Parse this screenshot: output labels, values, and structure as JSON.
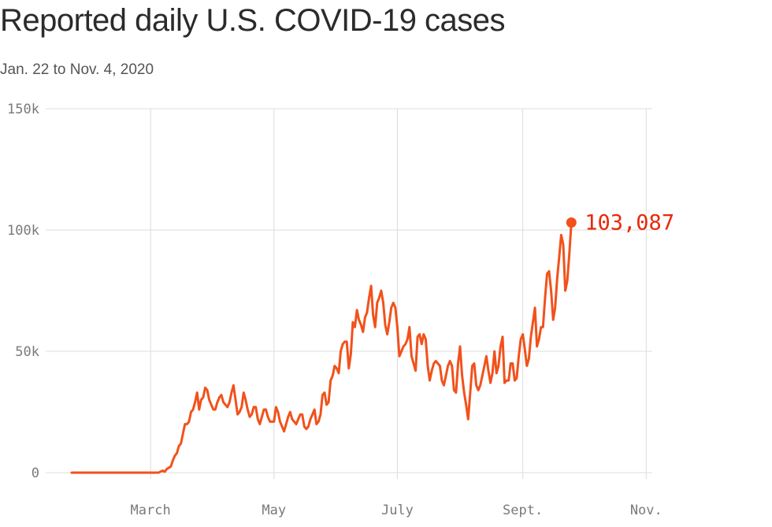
{
  "title": "Reported daily U.S. COVID-19 cases",
  "subtitle": "Jan. 22 to Nov. 4, 2020",
  "colors": {
    "line": "#f2511b",
    "label": "#e8290b",
    "grid": "#dcdcdc",
    "text": "#7a7a7a"
  },
  "chart_data": {
    "type": "line",
    "title": "Reported daily U.S. COVID-19 cases",
    "subtitle": "Jan. 22 to Nov. 4, 2020",
    "ylim": [
      0,
      150000
    ],
    "yticks": [
      {
        "value": 0,
        "label": "0"
      },
      {
        "value": 50000,
        "label": "50k"
      },
      {
        "value": 100000,
        "label": "100k"
      },
      {
        "value": 150000,
        "label": "150k"
      }
    ],
    "xlim": [
      "2020-01-22",
      "2020-11-04"
    ],
    "xticks": [
      {
        "date": "2020-03-01",
        "label": "March"
      },
      {
        "date": "2020-05-01",
        "label": "May"
      },
      {
        "date": "2020-07-01",
        "label": "July"
      },
      {
        "date": "2020-09-01",
        "label": "Sept."
      },
      {
        "date": "2020-11-01",
        "label": "Nov."
      }
    ],
    "grid": true,
    "end_label": "103,087",
    "series": [
      {
        "start_date": "2020-01-22",
        "values": [
          0,
          0,
          0,
          0,
          0,
          0,
          0,
          0,
          0,
          0,
          0,
          0,
          0,
          0,
          0,
          0,
          0,
          0,
          0,
          0,
          0,
          0,
          0,
          0,
          0,
          0,
          0,
          0,
          0,
          0,
          0,
          0,
          0,
          0,
          0,
          0,
          0,
          0,
          0,
          0,
          0,
          0,
          0,
          0,
          500,
          800,
          400,
          1500,
          2000,
          2500,
          5000,
          7000,
          8000,
          11000,
          12000,
          16000,
          20000,
          20000,
          21000,
          25000,
          26000,
          29000,
          33000,
          26000,
          30000,
          31000,
          35000,
          34000,
          30000,
          28000,
          26000,
          26000,
          29000,
          31000,
          32000,
          29000,
          28000,
          27000,
          29000,
          33000,
          36000,
          30000,
          24000,
          25000,
          27000,
          33000,
          30000,
          26000,
          23000,
          24000,
          27000,
          27000,
          22000,
          20000,
          23000,
          26000,
          26000,
          23000,
          21000,
          21000,
          21000,
          27000,
          25000,
          21000,
          19000,
          17000,
          20000,
          23000,
          25000,
          22000,
          21000,
          20000,
          22000,
          24000,
          24000,
          19000,
          18000,
          19000,
          22000,
          24000,
          26000,
          20000,
          21000,
          24000,
          32000,
          33000,
          28000,
          29000,
          38000,
          40000,
          44000,
          43000,
          41000,
          50000,
          53000,
          54000,
          54000,
          43000,
          49000,
          62000,
          60000,
          67000,
          63000,
          61000,
          58000,
          64000,
          66000,
          72000,
          77000,
          65000,
          60000,
          70000,
          72000,
          75000,
          70000,
          61000,
          57000,
          62000,
          68000,
          70000,
          68000,
          60000,
          48000,
          50000,
          52000,
          53000,
          55000,
          60000,
          48000,
          45000,
          42000,
          56000,
          57000,
          53000,
          57000,
          55000,
          44000,
          38000,
          42000,
          45000,
          46000,
          45000,
          44000,
          38000,
          36000,
          40000,
          44000,
          46000,
          44000,
          34000,
          33000,
          45000,
          52000,
          40000,
          33000,
          28000,
          22000,
          33000,
          44000,
          45000,
          36000,
          34000,
          36000,
          40000,
          44000,
          48000,
          42000,
          37000,
          41000,
          50000,
          41000,
          44000,
          52000,
          56000,
          37000,
          38000,
          38000,
          45000,
          45000,
          38000,
          39000,
          48000,
          55000,
          57000,
          51000,
          44000,
          47000,
          56000,
          62000,
          68000,
          52000,
          55000,
          60000,
          60000,
          72000,
          82000,
          83000,
          75000,
          63000,
          68000,
          80000,
          89000,
          98000,
          94000,
          75000,
          79000,
          90000,
          103087
        ]
      }
    ]
  }
}
